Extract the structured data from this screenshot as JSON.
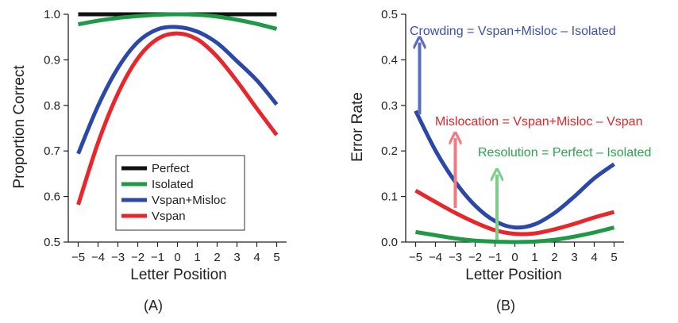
{
  "chart_data": [
    {
      "id": "A",
      "type": "line",
      "panel_label": "(A)",
      "xlabel": "Letter Position",
      "ylabel": "Proportion Correct",
      "xlim": [
        -5.5,
        5.5
      ],
      "ylim": [
        0.5,
        1.0
      ],
      "x_ticks": [
        -5,
        -4,
        -3,
        -2,
        -1,
        0,
        1,
        2,
        3,
        4,
        5
      ],
      "y_ticks": [
        0.5,
        0.6,
        0.7,
        0.8,
        0.9,
        1.0
      ],
      "y_tick_labels": [
        "0.5",
        "0.6",
        "0.7",
        "0.8",
        "0.9",
        "1.0"
      ],
      "x": [
        -5,
        -4,
        -3,
        -2,
        -1,
        0,
        1,
        2,
        3,
        4,
        5
      ],
      "legend_position": "lower-center",
      "series": [
        {
          "name": "Perfect",
          "color": "#111111",
          "values": [
            1.0,
            1.0,
            1.0,
            1.0,
            1.0,
            1.0,
            1.0,
            1.0,
            1.0,
            1.0,
            1.0
          ]
        },
        {
          "name": "Isolated",
          "color": "#1e9a46",
          "values": [
            0.978,
            0.986,
            0.992,
            0.996,
            0.999,
            1.0,
            0.999,
            0.995,
            0.988,
            0.979,
            0.968
          ]
        },
        {
          "name": "Vspan+Misloc",
          "color": "#2b47a8",
          "values": [
            0.694,
            0.799,
            0.882,
            0.939,
            0.967,
            0.972,
            0.962,
            0.937,
            0.897,
            0.855,
            0.802
          ]
        },
        {
          "name": "Vspan",
          "color": "#e8262b",
          "values": [
            0.582,
            0.718,
            0.826,
            0.903,
            0.946,
            0.958,
            0.945,
            0.907,
            0.853,
            0.793,
            0.735
          ]
        }
      ]
    },
    {
      "id": "B",
      "type": "line",
      "panel_label": "(B)",
      "xlabel": "Letter Position",
      "ylabel": "Error Rate",
      "xlim": [
        -5.5,
        5.5
      ],
      "ylim": [
        0.0,
        0.5
      ],
      "x_ticks": [
        -5,
        -4,
        -3,
        -2,
        -1,
        0,
        1,
        2,
        3,
        4,
        5
      ],
      "y_ticks": [
        0.0,
        0.1,
        0.2,
        0.3,
        0.4,
        0.5
      ],
      "y_tick_labels": [
        "0.0",
        "0.1",
        "0.2",
        "0.3",
        "0.4",
        "0.5"
      ],
      "x": [
        -5,
        -4,
        -3,
        -2,
        -1,
        0,
        1,
        2,
        3,
        4,
        5
      ],
      "series": [
        {
          "color": "#2b47a8",
          "values": [
            0.288,
            0.201,
            0.132,
            0.08,
            0.046,
            0.032,
            0.039,
            0.064,
            0.1,
            0.14,
            0.171
          ]
        },
        {
          "color": "#e8262b",
          "values": [
            0.113,
            0.088,
            0.064,
            0.043,
            0.026,
            0.018,
            0.019,
            0.028,
            0.04,
            0.054,
            0.066
          ]
        },
        {
          "color": "#1e9a46",
          "values": [
            0.022,
            0.015,
            0.008,
            0.003,
            0.001,
            0.0,
            0.001,
            0.005,
            0.012,
            0.021,
            0.032
          ]
        }
      ],
      "arrows": [
        {
          "color": "#5b6bbd",
          "x": -4.8,
          "y_from": 0.28,
          "y_to": 0.445,
          "label": "Crowding = Vspan+Misloc – Isolated"
        },
        {
          "color": "#f07a80",
          "x": -3.0,
          "y_from": 0.075,
          "y_to": 0.235,
          "label": "Mislocation = Vspan+Misloc – Vspan"
        },
        {
          "color": "#7ccf8a",
          "x": -0.9,
          "y_from": 0.005,
          "y_to": 0.155,
          "label": "Resolution = Perfect – Isolated"
        }
      ]
    }
  ]
}
